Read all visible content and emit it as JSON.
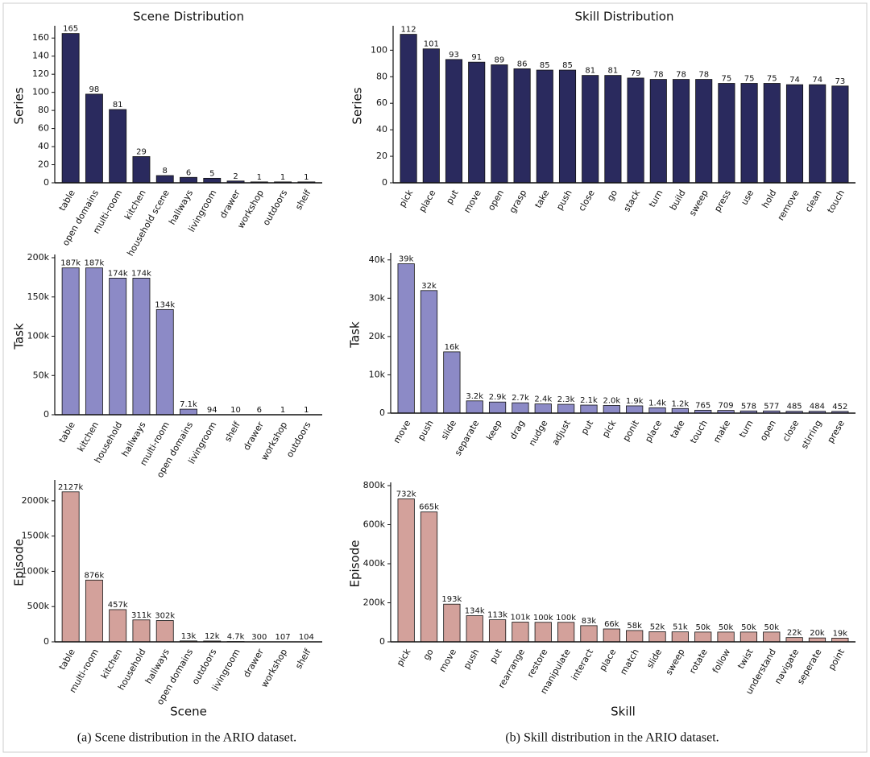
{
  "chart_data": [
    {
      "type": "bar",
      "title": "Scene Distribution",
      "y_label": "Series",
      "color": "#2a2a5e",
      "categories": [
        "table",
        "open domains",
        "multi-room",
        "kitchen",
        "household scene",
        "hallways",
        "livingroom",
        "drawer",
        "workshop",
        "outdoors",
        "shelf"
      ],
      "values": [
        165,
        98,
        81,
        29,
        8,
        6,
        5,
        2,
        1,
        1,
        1
      ],
      "ylim": [
        0,
        170
      ],
      "yticks": [
        0,
        20,
        40,
        60,
        80,
        100,
        120,
        140,
        160
      ]
    },
    {
      "type": "bar",
      "title": "Skill Distribution",
      "y_label": "Series",
      "color": "#2a2a5e",
      "categories": [
        "pick",
        "place",
        "put",
        "move",
        "open",
        "grasp",
        "take",
        "push",
        "close",
        "go",
        "stack",
        "turn",
        "build",
        "sweep",
        "press",
        "use",
        "hold",
        "remove",
        "clean",
        "touch"
      ],
      "values": [
        112,
        101,
        93,
        91,
        89,
        86,
        85,
        85,
        81,
        81,
        79,
        78,
        78,
        78,
        75,
        75,
        75,
        74,
        74,
        73
      ],
      "ylim": [
        0,
        116
      ],
      "yticks": [
        0,
        20,
        40,
        60,
        80,
        100
      ]
    },
    {
      "type": "bar",
      "y_label": "Task",
      "color": "#8c8ac6",
      "categories": [
        "table",
        "kitchen",
        "household",
        "hallways",
        "multi-room",
        "open domains",
        "livingroom",
        "shelf",
        "drawer",
        "workshop",
        "outdoors"
      ],
      "values": [
        187000,
        187000,
        174000,
        174000,
        134000,
        7100,
        94,
        10,
        6,
        1,
        1
      ],
      "value_labels": [
        "187k",
        "187k",
        "174k",
        "174k",
        "134k",
        "7.1k",
        "94",
        "10",
        "6",
        "1",
        "1"
      ],
      "ylim": [
        0,
        200000
      ],
      "yticks": [
        0,
        {
          "value": 50000,
          "label": "50k"
        },
        {
          "value": 100000,
          "label": "100k"
        },
        {
          "value": 150000,
          "label": "150k"
        },
        {
          "value": 200000,
          "label": "200k"
        }
      ]
    },
    {
      "type": "bar",
      "y_label": "Task",
      "color": "#8c8ac6",
      "categories": [
        "move",
        "push",
        "slide",
        "separate",
        "keep",
        "drag",
        "nudge",
        "adjust",
        "put",
        "pick",
        "ponit",
        "place",
        "take",
        "touch",
        "make",
        "turn",
        "open",
        "close",
        "stirring",
        "prese"
      ],
      "values": [
        39000,
        32000,
        16000,
        3200,
        2900,
        2700,
        2400,
        2300,
        2100,
        2000,
        1900,
        1400,
        1200,
        765,
        709,
        578,
        577,
        485,
        484,
        452
      ],
      "value_labels": [
        "39k",
        "32k",
        "16k",
        "3.2k",
        "2.9k",
        "2.7k",
        "2.4k",
        "2.3k",
        "2.1k",
        "2.0k",
        "1.9k",
        "1.4k",
        "1.2k",
        "765",
        "709",
        "578",
        "577",
        "485",
        "484",
        "452"
      ],
      "ylim": [
        0,
        41000
      ],
      "yticks": [
        0,
        {
          "value": 10000,
          "label": "10k"
        },
        {
          "value": 20000,
          "label": "20k"
        },
        {
          "value": 30000,
          "label": "30k"
        },
        {
          "value": 40000,
          "label": "40k"
        }
      ]
    },
    {
      "type": "bar",
      "y_label": "Episode",
      "x_label": "Scene",
      "color": "#d3a19b",
      "categories": [
        "table",
        "multi-room",
        "kitchen",
        "household",
        "hallways",
        "open domains",
        "outdoors",
        "livingroom",
        "drawer",
        "workshop",
        "shelf"
      ],
      "values": [
        2127000,
        876000,
        457000,
        311000,
        302000,
        13000,
        12000,
        4700,
        300,
        107,
        104
      ],
      "value_labels": [
        "2127k",
        "876k",
        "457k",
        "311k",
        "302k",
        "13k",
        "12k",
        "4.7k",
        "300",
        "107",
        "104"
      ],
      "ylim": [
        0,
        2250000
      ],
      "yticks": [
        0,
        {
          "value": 500000,
          "label": "500k"
        },
        {
          "value": 1000000,
          "label": "1000k"
        },
        {
          "value": 1500000,
          "label": "1500k"
        },
        {
          "value": 2000000,
          "label": "2000k"
        }
      ]
    },
    {
      "type": "bar",
      "y_label": "Episode",
      "x_label": "Skill",
      "color": "#d3a19b",
      "categories": [
        "pick",
        "go",
        "move",
        "push",
        "put",
        "rearrange",
        "restore",
        "manipulate",
        "interact",
        "place",
        "match",
        "slide",
        "sweep",
        "rotate",
        "follow",
        "twist",
        "understand",
        "navigate",
        "seperate",
        "point"
      ],
      "values": [
        732000,
        665000,
        193000,
        134000,
        113000,
        101000,
        100000,
        100000,
        83000,
        66000,
        58000,
        52000,
        51000,
        50000,
        50000,
        50000,
        50000,
        22000,
        20000,
        19000
      ],
      "value_labels": [
        "732k",
        "665k",
        "193k",
        "134k",
        "113k",
        "101k",
        "100k",
        "100k",
        "83k",
        "66k",
        "58k",
        "52k",
        "51k",
        "50k",
        "50k",
        "50k",
        "50k",
        "22k",
        "20k",
        "19k"
      ],
      "ylim": [
        0,
        800000
      ],
      "yticks": [
        0,
        {
          "value": 200000,
          "label": "200k"
        },
        {
          "value": 400000,
          "label": "400k"
        },
        {
          "value": 600000,
          "label": "600k"
        },
        {
          "value": 800000,
          "label": "800k"
        }
      ]
    }
  ],
  "captions": [
    "(a) Scene distribution in the ARIO dataset.",
    "(b) Skill distribution in the ARIO dataset."
  ]
}
